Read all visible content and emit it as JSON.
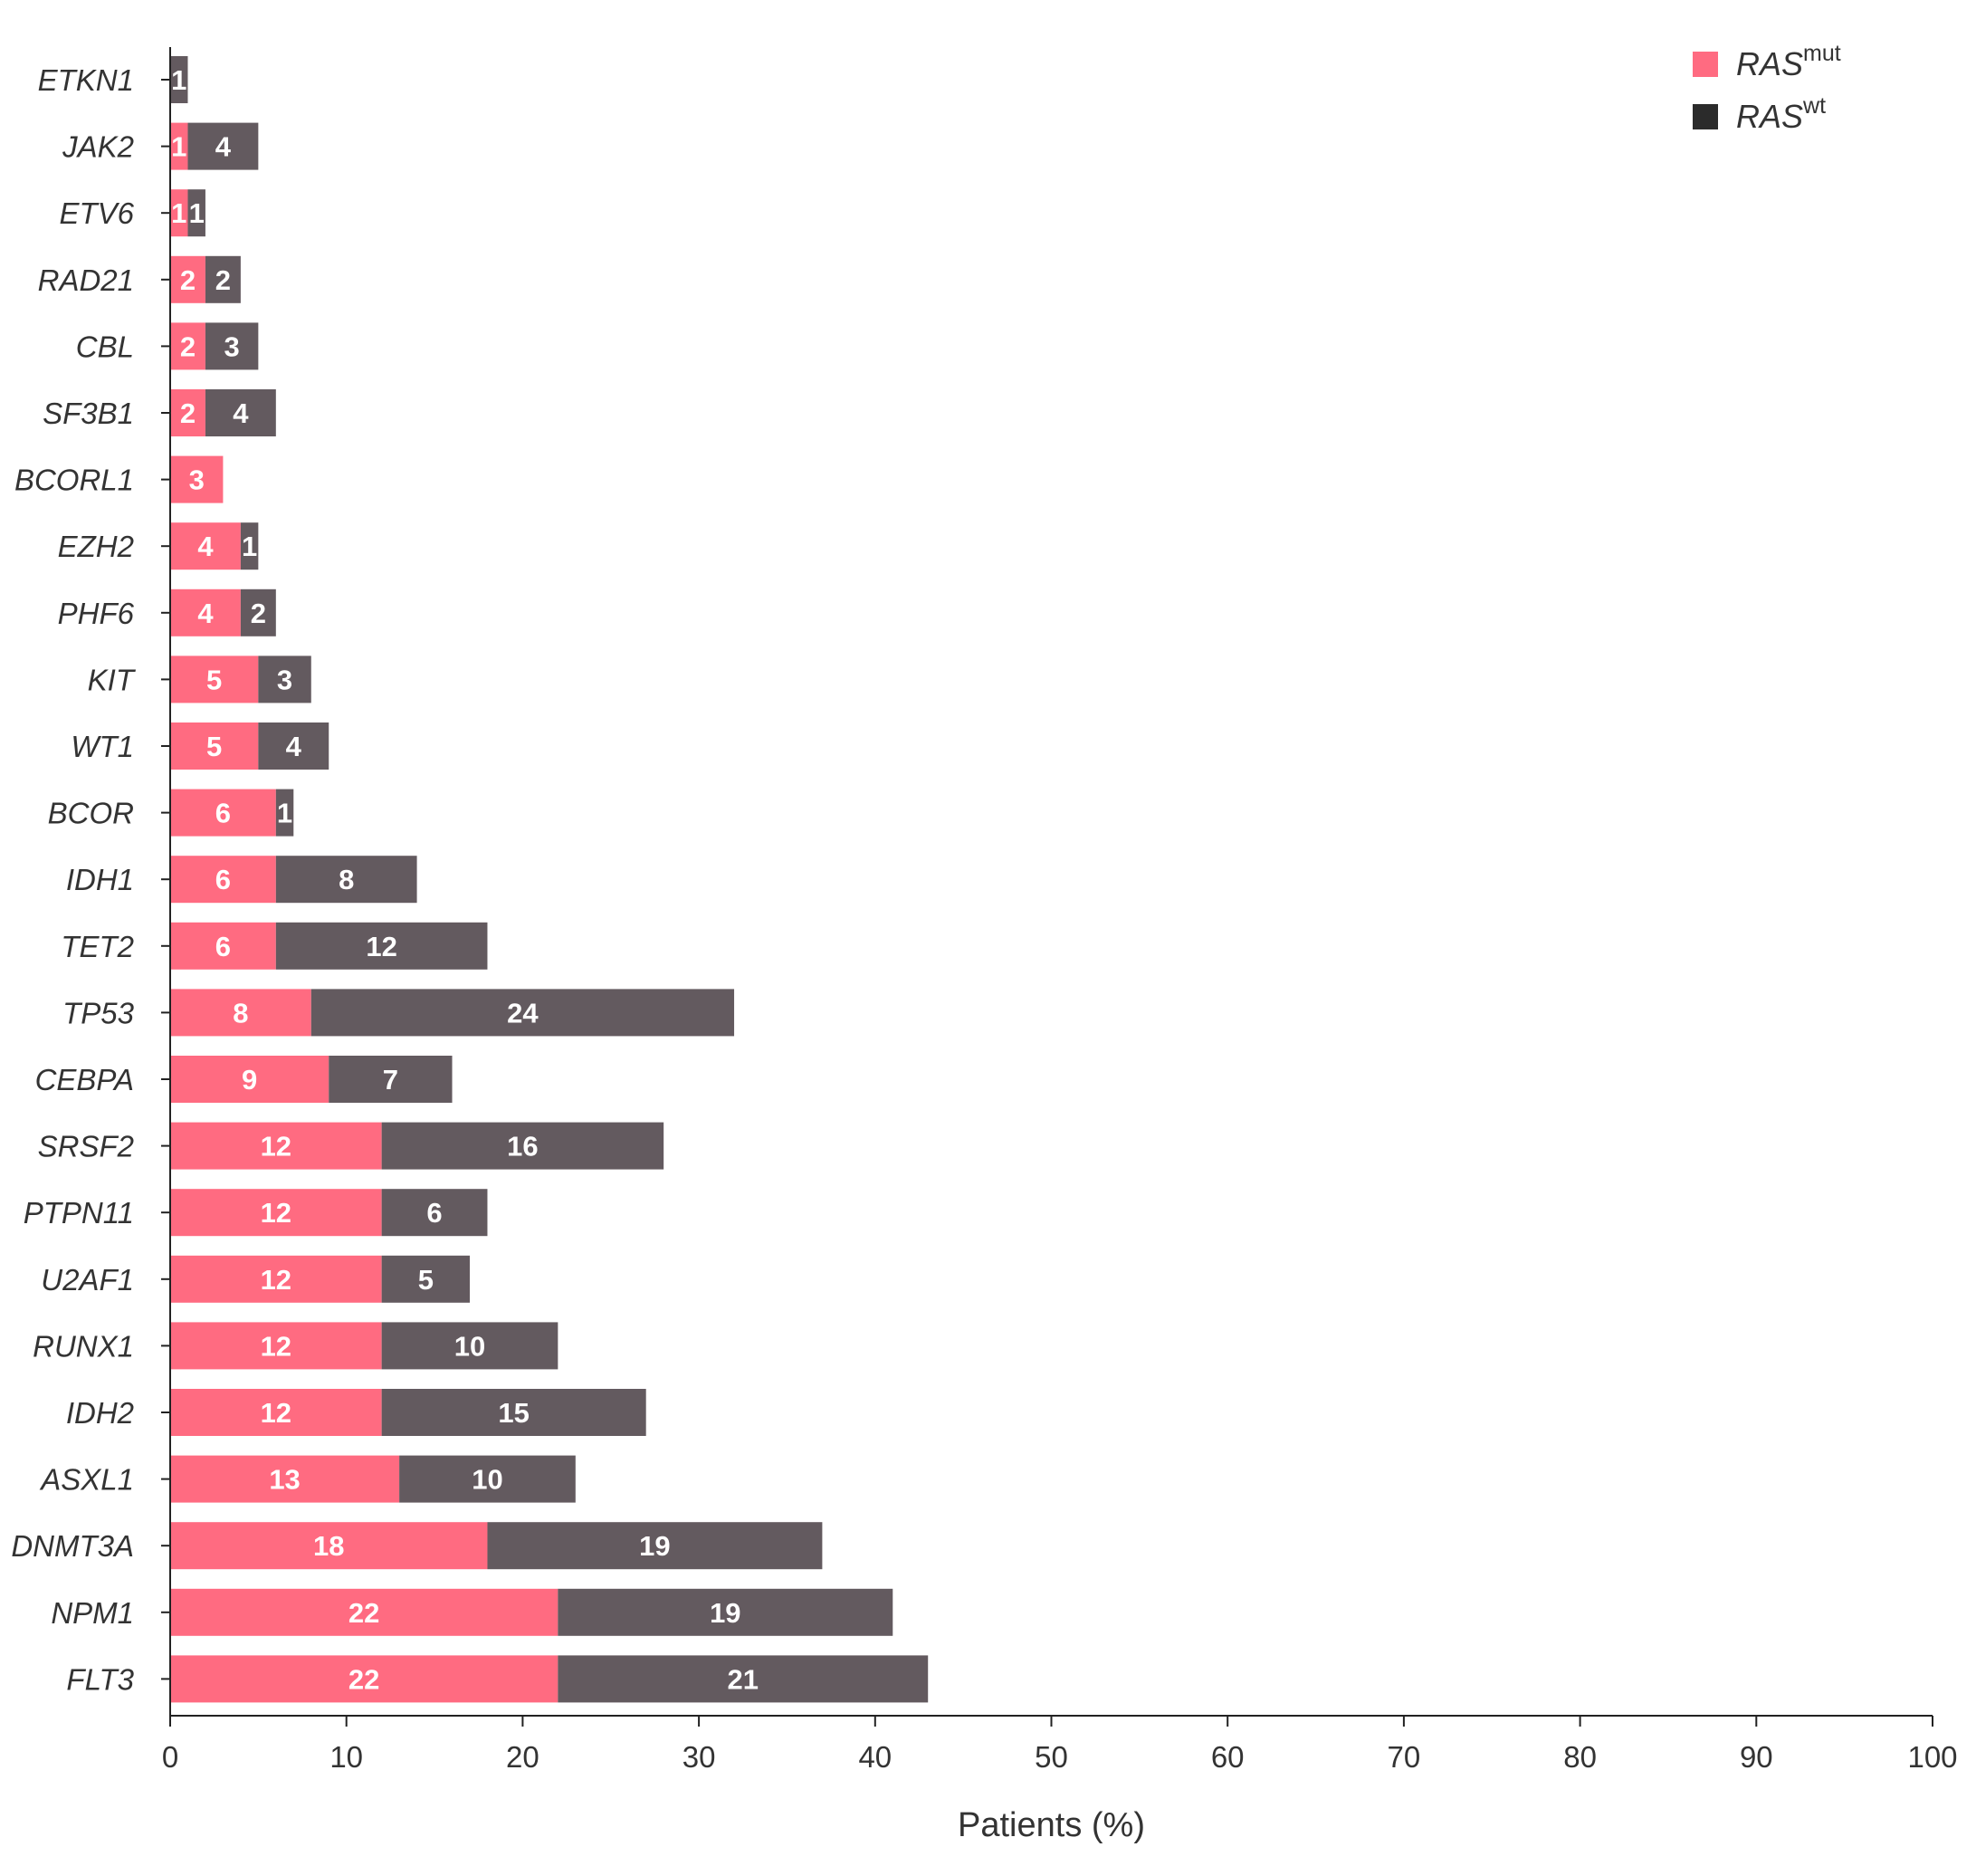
{
  "chart_data": {
    "type": "bar",
    "orientation": "horizontal",
    "stacked": true,
    "categories": [
      "ETKN1",
      "JAK2",
      "ETV6",
      "RAD21",
      "CBL",
      "SF3B1",
      "BCORL1",
      "EZH2",
      "PHF6",
      "KIT",
      "WT1",
      "BCOR",
      "IDH1",
      "TET2",
      "TP53",
      "CEBPA",
      "SRSF2",
      "PTPN11",
      "U2AF1",
      "RUNX1",
      "IDH2",
      "ASXL1",
      "DNMT3A",
      "NPM1",
      "FLT3"
    ],
    "series": [
      {
        "name": "RAS",
        "superscript": "mut",
        "color": "#FF6B81",
        "values": [
          0,
          1,
          1,
          2,
          2,
          2,
          3,
          4,
          4,
          5,
          5,
          6,
          6,
          6,
          8,
          9,
          12,
          12,
          12,
          12,
          12,
          13,
          18,
          22,
          22
        ]
      },
      {
        "name": "RAS",
        "superscript": "wt",
        "color": "#635A5F",
        "legend_color": "#2B2B2B",
        "values": [
          1,
          4,
          1,
          2,
          3,
          4,
          0,
          1,
          2,
          3,
          4,
          1,
          8,
          12,
          24,
          7,
          16,
          6,
          5,
          10,
          15,
          10,
          19,
          19,
          21
        ]
      }
    ],
    "xlabel": "Patients (%)",
    "ylabel": "",
    "xlim": [
      0,
      100
    ],
    "xticks": [
      0,
      10,
      20,
      30,
      40,
      50,
      60,
      70,
      80,
      90,
      100
    ],
    "legend_position": "top-right",
    "grid": false
  }
}
